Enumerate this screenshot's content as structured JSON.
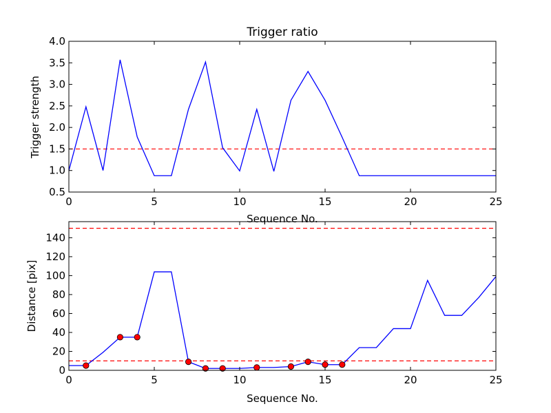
{
  "chart_data": [
    {
      "type": "line",
      "title": "Trigger ratio",
      "xlabel": "Sequence No.",
      "ylabel": "Trigger strength",
      "xlim": [
        0,
        25
      ],
      "ylim": [
        0.5,
        4.0
      ],
      "x_ticks": [
        "0",
        "5",
        "10",
        "15",
        "20",
        "25"
      ],
      "y_ticks": [
        "0.5",
        "1.0",
        "1.5",
        "2.0",
        "2.5",
        "3.0",
        "3.5",
        "4.0"
      ],
      "grid": false,
      "series": [
        {
          "style": "solid",
          "color": "#0000ff",
          "x": [
            0,
            1,
            2,
            3,
            4,
            5,
            6,
            7,
            8,
            9,
            10,
            11,
            12,
            13,
            14,
            15,
            16,
            17,
            18,
            19,
            20,
            21,
            22,
            23,
            24,
            25
          ],
          "y": [
            1.0,
            2.48,
            1.0,
            3.57,
            1.78,
            0.88,
            0.88,
            2.42,
            3.52,
            1.53,
            0.99,
            2.42,
            0.98,
            2.63,
            3.3,
            2.63,
            1.77,
            0.88,
            0.88,
            0.88,
            0.88,
            0.88,
            0.88,
            0.88,
            0.88,
            0.88
          ]
        }
      ],
      "hlines": [
        {
          "y": 1.5,
          "color": "#ff0000",
          "style": "dashed"
        }
      ]
    },
    {
      "type": "line",
      "title": "",
      "xlabel": "Sequence No.",
      "ylabel": "Distance [pix]",
      "xlim": [
        0,
        25
      ],
      "ylim": [
        0,
        157
      ],
      "x_ticks": [
        "0",
        "5",
        "10",
        "15",
        "20",
        "25"
      ],
      "y_ticks": [
        "0",
        "20",
        "40",
        "60",
        "80",
        "100",
        "120",
        "140"
      ],
      "grid": false,
      "series": [
        {
          "style": "solid",
          "color": "#0000ff",
          "x": [
            0,
            1,
            2,
            3,
            4,
            5,
            6,
            7,
            8,
            9,
            10,
            11,
            12,
            13,
            14,
            15,
            16,
            17,
            18,
            19,
            20,
            21,
            22,
            23,
            24,
            25
          ],
          "y": [
            5,
            5,
            19,
            35,
            35,
            104,
            104,
            9,
            2,
            2,
            2,
            3,
            3,
            4,
            9,
            6,
            6,
            24,
            24,
            44,
            44,
            95,
            58,
            58,
            77,
            99
          ]
        },
        {
          "style": "markers",
          "color": "#ff0000",
          "x": [
            1,
            3,
            4,
            7,
            8,
            9,
            11,
            13,
            14,
            15,
            16
          ],
          "y": [
            5,
            35,
            35,
            9,
            2,
            2,
            3,
            4,
            9,
            6,
            6
          ]
        }
      ],
      "hlines": [
        {
          "y": 150,
          "color": "#ff0000",
          "style": "dashed"
        },
        {
          "y": 10,
          "color": "#ff0000",
          "style": "dashed"
        }
      ]
    }
  ]
}
